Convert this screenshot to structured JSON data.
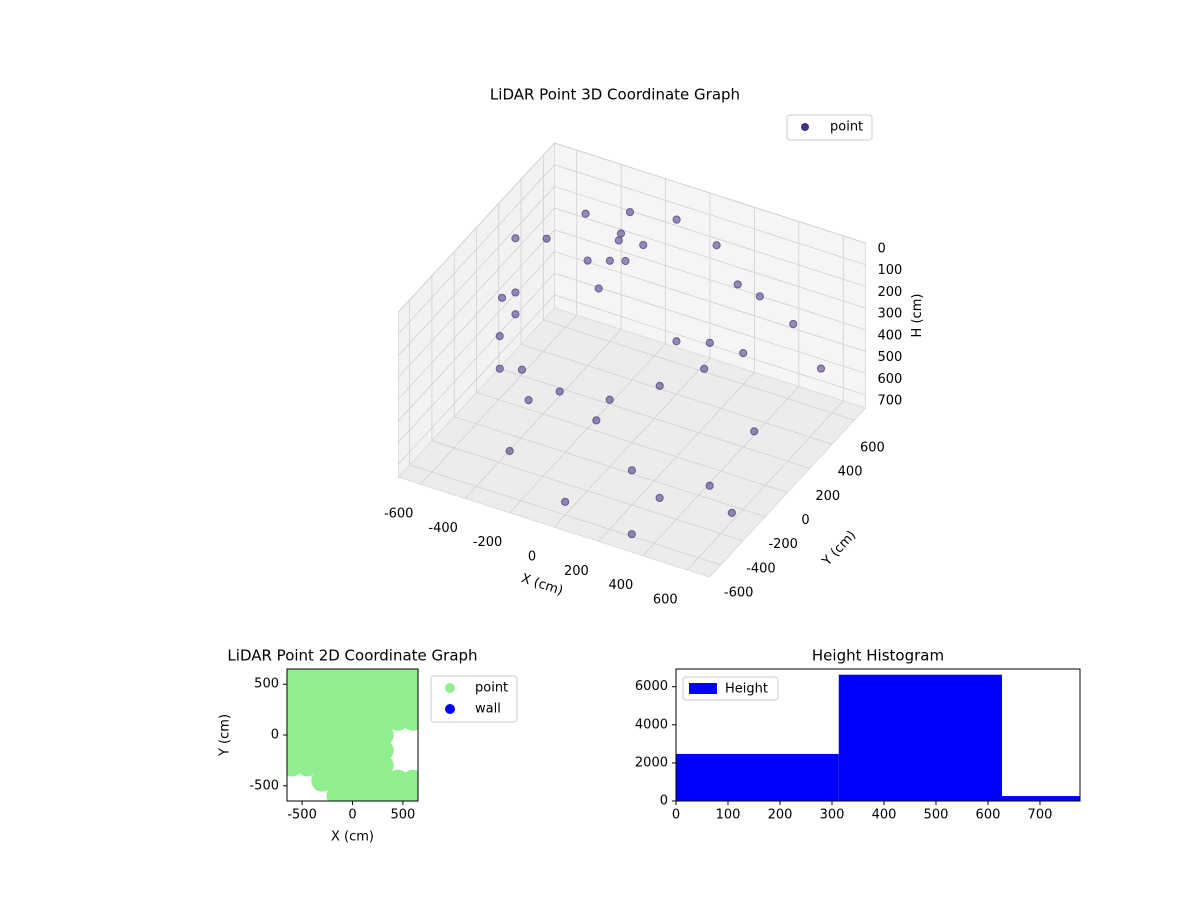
{
  "chart_data": [
    {
      "type": "scatter3d",
      "title": "LiDAR Point 3D Coordinate Graph",
      "x_label": "X (cm)",
      "y_label": "Y (cm)",
      "z_label": "H (cm)",
      "xlim": [
        -700,
        700
      ],
      "ylim": [
        -700,
        700
      ],
      "zlim": [
        0,
        760
      ],
      "z_inverted": true,
      "xticks": [
        -600,
        -400,
        -200,
        0,
        200,
        400,
        600
      ],
      "yticks": [
        -600,
        -400,
        -200,
        0,
        200,
        400,
        600
      ],
      "zticks": [
        0,
        100,
        200,
        300,
        400,
        500,
        600,
        700
      ],
      "grid": true,
      "legend": "upper right",
      "series": [
        {
          "name": "point",
          "color": "#46317e",
          "x": [
            -600,
            -600,
            -560,
            -470,
            -300,
            -100,
            100,
            250,
            -560,
            -480,
            -330,
            -150,
            50,
            200,
            -600,
            -480,
            -300,
            0,
            -200,
            -100,
            -250,
            -150,
            -200,
            -220,
            -180,
            150,
            250,
            300,
            350,
            400,
            500,
            600,
            200,
            350,
            450,
            0,
            600,
            -300,
            500,
            300
          ],
          "y": [
            150,
            150,
            350,
            520,
            580,
            600,
            560,
            450,
            -50,
            -230,
            -330,
            -350,
            -300,
            -150,
            150,
            -230,
            -330,
            -320,
            200,
            300,
            100,
            0,
            300,
            320,
            300,
            100,
            200,
            50,
            300,
            350,
            450,
            500,
            -400,
            -450,
            -200,
            -600,
            -300,
            -500,
            100,
            -600
          ],
          "h": [
            100,
            350,
            200,
            150,
            120,
            100,
            130,
            200,
            250,
            300,
            350,
            380,
            380,
            350,
            450,
            450,
            480,
            480,
            100,
            50,
            60,
            100,
            30,
            80,
            150,
            300,
            330,
            350,
            400,
            150,
            300,
            500,
            600,
            650,
            700,
            700,
            720,
            620,
            600,
            750
          ]
        }
      ]
    },
    {
      "type": "scatter",
      "title": "LiDAR Point 2D Coordinate Graph",
      "x_label": "X (cm)",
      "y_label": "Y (cm)",
      "xlim": [
        -650,
        650
      ],
      "ylim": [
        -650,
        650
      ],
      "xticks": [
        -500,
        0,
        500
      ],
      "yticks": [
        -500,
        0,
        500
      ],
      "legend": "outside right",
      "series": [
        {
          "name": "point",
          "color": "#90ee90",
          "x": [
            -600,
            -450,
            -300,
            -150,
            0,
            150,
            300,
            450,
            600,
            -600,
            -450,
            -300,
            -150,
            0,
            150,
            300,
            450,
            600,
            -600,
            -450,
            -300,
            -150,
            0,
            150,
            300,
            450,
            600,
            -600,
            -450,
            -300,
            -150,
            0,
            150,
            300,
            450,
            600,
            -600,
            -450,
            -300,
            -150,
            0,
            150,
            300,
            -600,
            -450,
            -300,
            -150,
            0,
            150,
            300,
            -600,
            -450,
            -300,
            -150,
            0,
            150,
            300,
            -300,
            -150,
            0,
            150,
            300,
            450,
            600,
            -150,
            0,
            150,
            300,
            450,
            600
          ],
          "y": [
            600,
            600,
            600,
            600,
            600,
            600,
            600,
            600,
            600,
            450,
            450,
            450,
            450,
            450,
            450,
            450,
            450,
            450,
            300,
            300,
            300,
            300,
            300,
            300,
            300,
            300,
            300,
            150,
            150,
            150,
            150,
            150,
            150,
            150,
            150,
            150,
            0,
            0,
            0,
            0,
            0,
            0,
            0,
            -150,
            -150,
            -150,
            -150,
            -150,
            -150,
            -150,
            -300,
            -300,
            -300,
            -300,
            -300,
            -300,
            -300,
            -450,
            -450,
            -450,
            -450,
            -450,
            -450,
            -450,
            -600,
            -600,
            -600,
            -600,
            -600,
            -600
          ]
        },
        {
          "name": "wall",
          "color": "#0000ff",
          "x": [],
          "y": []
        }
      ]
    },
    {
      "type": "histogram",
      "title": "Height Histogram",
      "name": "Height",
      "color": "#0000ff",
      "bins": [
        0,
        313,
        627,
        777
      ],
      "values": [
        2470,
        6630,
        260
      ],
      "xlim": [
        0,
        777
      ],
      "xticks": [
        0,
        100,
        200,
        300,
        400,
        500,
        600,
        700
      ],
      "ylim": [
        0,
        6930
      ],
      "yticks": [
        0,
        2000,
        4000,
        6000
      ],
      "legend": "upper left"
    }
  ]
}
